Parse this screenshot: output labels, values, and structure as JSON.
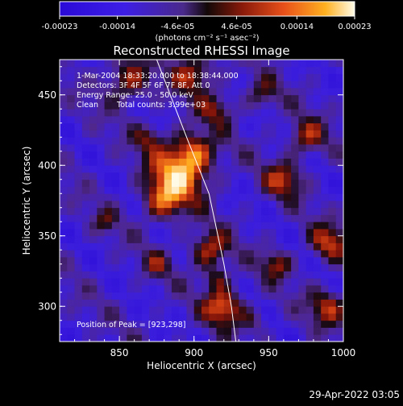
{
  "chart_data": {
    "type": "heatmap",
    "title": "Reconstructed RHESSI Image",
    "xlabel": "Heliocentric X (arcsec)",
    "ylabel": "Heliocentric Y (arcsec)",
    "xlim": [
      810,
      1000
    ],
    "ylim": [
      275,
      475
    ],
    "xticks": [
      850,
      900,
      950,
      1000
    ],
    "yticks": [
      300,
      350,
      400,
      450
    ],
    "colorbar": {
      "range": [
        -0.00023,
        0.00023
      ],
      "tick_values": [
        -0.00023,
        -0.00014,
        -4.6e-05,
        4.6e-05,
        0.00014,
        0.00023
      ],
      "tick_labels": [
        "-0.00023",
        "-0.00014",
        "-4.6e-05",
        "4.6e-05",
        "0.00014",
        "0.00023"
      ],
      "unit_label": "(photons cm⁻² s⁻¹ asec⁻²)"
    },
    "annotations": {
      "time": "1-Mar-2004 18:33:20.000 to 18:38:44.000",
      "detectors": "Detectors: 3F 4F 5F 6F 7F 8F, Att 0",
      "energy": "Energy Range: 25.0 - 50.0 keV",
      "method": "Clean",
      "counts": "Total counts: 3.99e+03",
      "peak": "Position of Peak = [923,298]"
    },
    "peak": [
      923,
      298
    ],
    "limb_curve": [
      [
        875,
        475
      ],
      [
        895,
        420
      ],
      [
        910,
        380
      ],
      [
        920,
        330
      ],
      [
        925,
        300
      ],
      [
        928,
        275
      ]
    ],
    "sources": [
      {
        "x": 890,
        "y": 395,
        "r": 14,
        "v": 0.00023
      },
      {
        "x": 880,
        "y": 375,
        "r": 10,
        "v": 0.00018
      },
      {
        "x": 900,
        "y": 410,
        "r": 10,
        "v": 0.00016
      },
      {
        "x": 910,
        "y": 340,
        "r": 9,
        "v": 0.00018
      },
      {
        "x": 920,
        "y": 300,
        "r": 9,
        "v": 0.00022
      },
      {
        "x": 915,
        "y": 320,
        "r": 6,
        "v": 0.00012
      },
      {
        "x": 855,
        "y": 460,
        "r": 11,
        "v": 0.00016
      },
      {
        "x": 900,
        "y": 465,
        "r": 10,
        "v": 0.00017
      },
      {
        "x": 915,
        "y": 440,
        "r": 8,
        "v": 0.00012
      },
      {
        "x": 870,
        "y": 420,
        "r": 7,
        "v": 0.00011
      },
      {
        "x": 960,
        "y": 390,
        "r": 9,
        "v": 0.00016
      },
      {
        "x": 975,
        "y": 420,
        "r": 9,
        "v": 0.00015
      },
      {
        "x": 990,
        "y": 345,
        "r": 9,
        "v": 0.00017
      },
      {
        "x": 955,
        "y": 330,
        "r": 7,
        "v": 0.00014
      },
      {
        "x": 990,
        "y": 300,
        "r": 9,
        "v": 0.00016
      },
      {
        "x": 945,
        "y": 450,
        "r": 8,
        "v": 0.00011
      },
      {
        "x": 875,
        "y": 330,
        "r": 7,
        "v": 0.0001
      },
      {
        "x": 840,
        "y": 360,
        "r": 6,
        "v": 9e-05
      },
      {
        "x": 940,
        "y": 290,
        "r": 6,
        "v": 9e-05
      }
    ]
  },
  "footer": {
    "timestamp": "29-Apr-2022 03:05"
  }
}
